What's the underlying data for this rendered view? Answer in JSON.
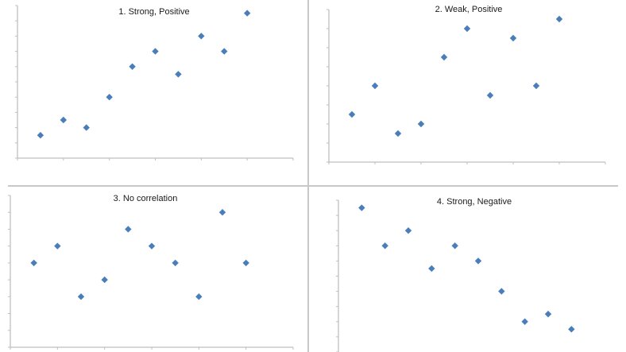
{
  "chart_data": [
    {
      "type": "scatter",
      "title": "1. Strong, Positive",
      "xlabel": "",
      "ylabel": "",
      "x": [
        0.5,
        1,
        1.5,
        2,
        2.5,
        3,
        3.5,
        4,
        4.5,
        5
      ],
      "y": [
        1.5,
        2.5,
        2,
        4,
        6,
        7,
        5.5,
        8,
        7,
        9.5
      ],
      "xlim": [
        0,
        6
      ],
      "ylim": [
        0,
        10
      ],
      "x_tick_labels": [],
      "y_tick_labels": [],
      "grid": false,
      "legend": null,
      "marker": "diamond",
      "color": "#4a7ebb"
    },
    {
      "type": "scatter",
      "title": "2. Weak, Positive",
      "xlabel": "",
      "ylabel": "",
      "x": [
        0.5,
        1,
        1.5,
        2,
        2.5,
        3,
        3.5,
        4,
        4.5,
        5
      ],
      "y": [
        2.5,
        4,
        1.5,
        2,
        5.5,
        7,
        3.5,
        6.5,
        4,
        7.5
      ],
      "xlim": [
        0,
        6
      ],
      "ylim": [
        0,
        8
      ],
      "x_tick_labels": [],
      "y_tick_labels": [],
      "grid": false,
      "legend": null,
      "marker": "diamond",
      "color": "#4a7ebb"
    },
    {
      "type": "scatter",
      "title": "3. No correlation",
      "xlabel": "",
      "ylabel": "",
      "x": [
        0.5,
        1,
        1.5,
        2,
        2.5,
        3,
        3.5,
        4,
        4.5,
        5
      ],
      "y": [
        5,
        6,
        3,
        4,
        7,
        6,
        5,
        3,
        8,
        5
      ],
      "xlim": [
        0,
        6
      ],
      "ylim": [
        0,
        9
      ],
      "x_tick_labels": [],
      "y_tick_labels": [],
      "grid": false,
      "legend": null,
      "marker": "diamond",
      "color": "#4a7ebb"
    },
    {
      "type": "scatter",
      "title": "4. Strong, Negative",
      "xlabel": "",
      "ylabel": "",
      "x": [
        0.5,
        1,
        1.5,
        2,
        2.5,
        3,
        3.5,
        4,
        4.5,
        5
      ],
      "y": [
        9.5,
        7,
        8,
        5.5,
        7,
        6,
        4,
        2,
        2.5,
        1.5
      ],
      "xlim": [
        0,
        6
      ],
      "ylim": [
        0,
        10
      ],
      "x_tick_labels": [],
      "y_tick_labels": [],
      "grid": false,
      "legend": null,
      "marker": "diamond",
      "color": "#4a7ebb"
    }
  ],
  "panels": [
    {
      "title": "1. Strong, Positive"
    },
    {
      "title": "2. Weak, Positive"
    },
    {
      "title": "3. No correlation"
    },
    {
      "title": "4. Strong, Negative"
    }
  ],
  "colors": {
    "marker": "#4a7ebb",
    "axis": "#bfbfbf",
    "divider": "#c8c8c8"
  }
}
